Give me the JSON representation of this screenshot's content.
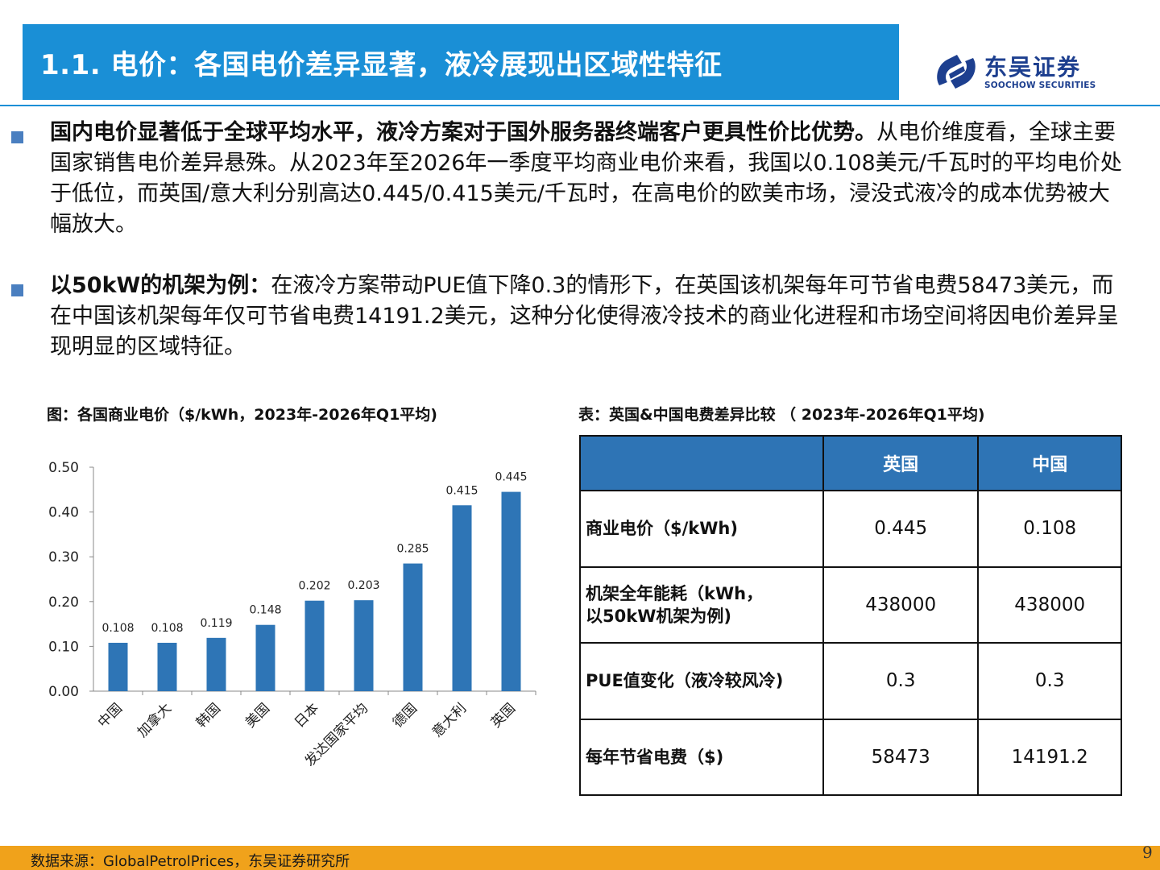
{
  "header": {
    "title": "1.1. 电价：各国电价差异显著，液冷展现出区域性特征",
    "logo_cn": "东吴证券",
    "logo_en": "SOOCHOW SECURITIES"
  },
  "bullets": [
    {
      "bold": "国内电价显著低于全球平均水平，液冷方案对于国外服务器终端客户更具性价比优势。",
      "text": "从电价维度看，全球主要国家销售电价差异悬殊。从2023年至2026年一季度平均商业电价来看，我国以0.108美元/千瓦时的平均电价处于低位，而英国/意大利分别高达0.445/0.415美元/千瓦时，在高电价的欧美市场，浸没式液冷的成本优势被大幅放大。"
    },
    {
      "bold": "以50kW的机架为例：",
      "text": "在液冷方案带动PUE值下降0.3的情形下，在英国该机架每年可节省电费58473美元，而在中国该机架每年仅可节省电费14191.2美元，这种分化使得液冷技术的商业化进程和市场空间将因电价差异呈现明显的区域特征。"
    }
  ],
  "chart_caption": "图：各国商业电价（$/kWh，2023年-2026年Q1平均)",
  "table_caption": "表：英国&中国电费差异比较 （ 2023年-2026年Q1平均)",
  "chart_data": {
    "type": "bar",
    "categories": [
      "中国",
      "加拿大",
      "韩国",
      "美国",
      "日本",
      "发达国家平均",
      "德国",
      "意大利",
      "英国"
    ],
    "values": [
      0.108,
      0.108,
      0.119,
      0.148,
      0.202,
      0.203,
      0.285,
      0.415,
      0.445
    ],
    "value_labels": [
      "0.108",
      "0.108",
      "0.119",
      "0.148",
      "0.202",
      "0.203",
      "0.285",
      "0.415",
      "0.445"
    ],
    "yticks": [
      "0.00",
      "0.10",
      "0.20",
      "0.30",
      "0.40",
      "0.50"
    ],
    "ylim": [
      0,
      0.5
    ],
    "bar_color": "#2e75b6",
    "title": "",
    "xlabel": "",
    "ylabel": ""
  },
  "table": {
    "headers": [
      "",
      "英国",
      "中国"
    ],
    "rows": [
      {
        "label": "商业电价（$/kWh)",
        "uk": "0.445",
        "cn": "0.108"
      },
      {
        "label": "机架全年能耗（kWh，以50kW机架为例)",
        "label_lines": [
          "机架全年能耗（kWh，",
          "以50kW机架为例)"
        ],
        "uk": "438000",
        "cn": "438000"
      },
      {
        "label": "PUE值变化（液冷较风冷)",
        "uk": "0.3",
        "cn": "0.3"
      },
      {
        "label": "每年节省电费（$)",
        "uk": "58473",
        "cn": "14191.2"
      }
    ]
  },
  "footer": {
    "source": "数据来源：GlobalPetrolPrices，东吴证券研究所",
    "page": "9"
  },
  "colors": {
    "title_bar": "#1a8fd6",
    "table_header": "#2e74b5",
    "footer": "#f0a21b",
    "logo": "#1d3f8f"
  }
}
